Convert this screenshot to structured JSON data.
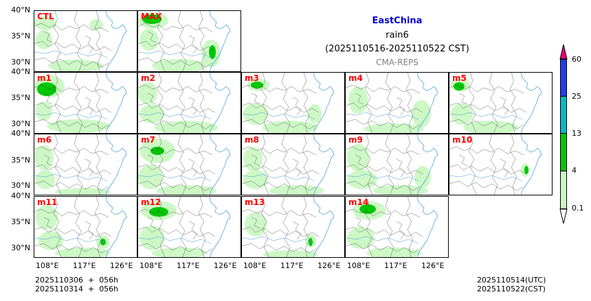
{
  "title": {
    "region": "EastChina",
    "variable": "rain6",
    "period": "(2025110516-2025110522 CST)",
    "model": "CMA-REPS"
  },
  "colors": {
    "title": "#0000cc",
    "model": "#808080",
    "label": "#ff0000",
    "rain_0_1": "#c8f7c0",
    "rain_4": "#00c800",
    "rain_13": "#00bcc8",
    "rain_25": "#1e3cff",
    "rain_60": "#e8007a",
    "coast": "#3a9ad9",
    "border": "#404040"
  },
  "members": [
    "CTL",
    "MAX",
    "m1",
    "m2",
    "m3",
    "m4",
    "m5",
    "m6",
    "m7",
    "m8",
    "m9",
    "m10",
    "m11",
    "m12",
    "m13",
    "m14"
  ],
  "lat_labels": [
    "40°N",
    "35°N",
    "30°N"
  ],
  "lon_labels": [
    "108°E",
    "117°E",
    "126°E"
  ],
  "colorbar": {
    "levels": [
      "60",
      "25",
      "13",
      "4",
      "0.1"
    ]
  },
  "footer": {
    "init_utc": "2025110306  +  056h",
    "init_cst": "2025110314  +  056h",
    "valid_utc": "2025110514(UTC)",
    "valid_cst": "2025110522(CST)"
  }
}
